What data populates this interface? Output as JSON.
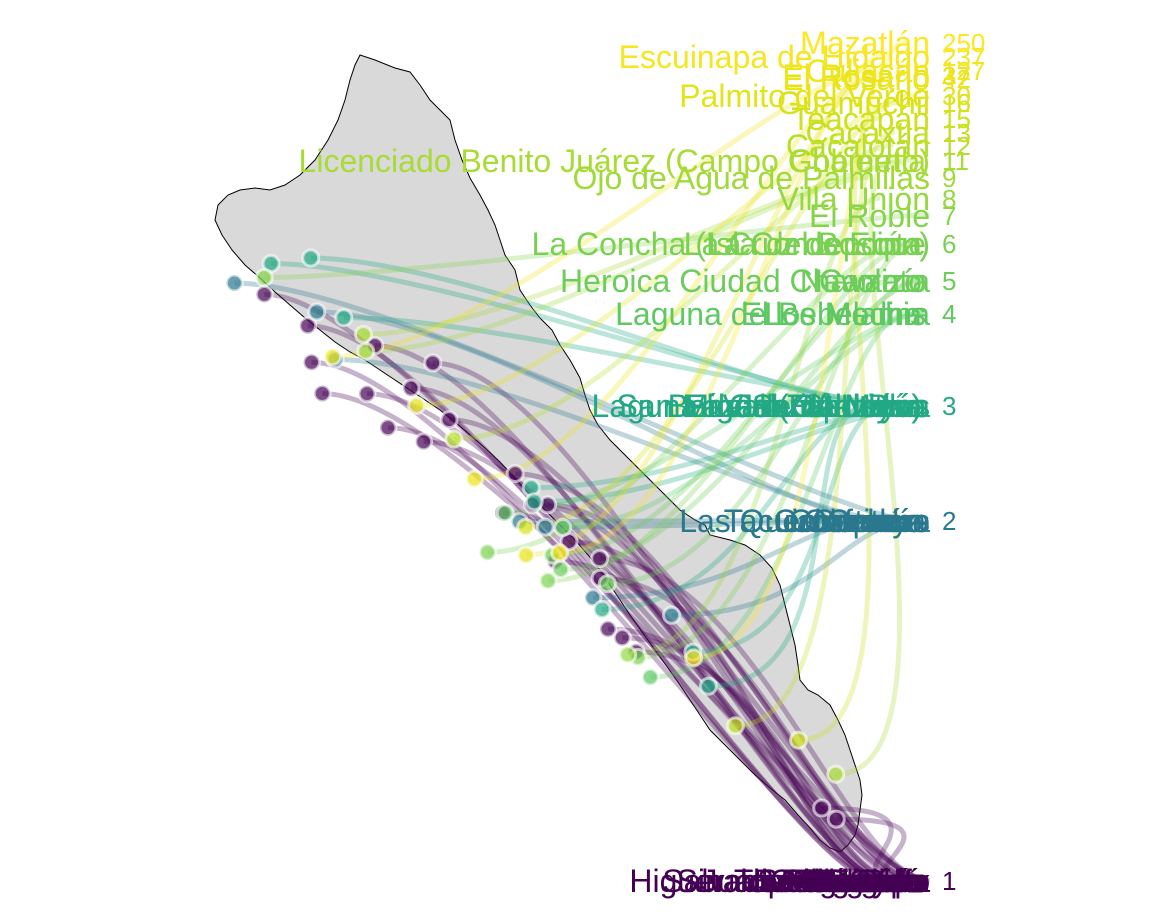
{
  "chart_data": {
    "type": "scatter",
    "title": "",
    "xlabel": "",
    "ylabel": "",
    "grid": false,
    "legend": "none",
    "description_layers": [
      "state map of Sinaloa",
      "localities as points",
      "curved flows to ranked bump-chart labels"
    ],
    "color_scale": [
      "#440154",
      "#3b528b",
      "#21918c",
      "#5ec962",
      "#fde725"
    ],
    "ranks": [
      {
        "rank": "1",
        "color": "#440154",
        "names": [
          "Escuinapa",
          "San Ignacio",
          "Cosalá",
          "Elota",
          "Concordia",
          "El Fuerte",
          "Choix",
          "Badiraguato",
          "Sinaloa de Leyva",
          "Mocorito",
          "Angostura",
          "Salvador Alvarado",
          "Navolato",
          "Guasave",
          "Ahome",
          "Culiacán",
          "Mazatlán",
          "Rosario",
          "Eldorado",
          "Costa Rica",
          "Juan José Ríos",
          "Higuera de Zaragoza",
          "Topolobampo",
          "La Cruz"
        ]
      },
      {
        "rank": "2",
        "color": "#2a788e",
        "names": [
          "Caimanero",
          "Cofradía",
          "Copaco",
          "Tacuichamona",
          "Celaya",
          "Colotitlán",
          "Las Quemazones"
        ]
      },
      {
        "rank": "3",
        "color": "#22a884",
        "names": [
          "El Valle de Leyva",
          "Laguna de Santa María",
          "Bamoa (Estación)",
          "San Blas",
          "Gabriel Leyva",
          "Juan Aldama",
          "Lázaro Cárdenas",
          "San Miguel Zapotitlán"
        ]
      },
      {
        "rank": "4",
        "color": "#5ec962",
        "names": [
          "Laguna de los Medina",
          "Los Mochis",
          "El Bebelama"
        ]
      },
      {
        "rank": "5",
        "color": "#6ccd5a",
        "names": [
          "Heroica Ciudad Chavarría",
          "Navolato",
          "Carrizo"
        ]
      },
      {
        "rank": "6",
        "color": "#7ad151",
        "names": [
          "La Concha (La Concepción)",
          "Isla del Bosque",
          "La Cruz de Elota"
        ]
      },
      {
        "rank": "7",
        "color": "#84d44b",
        "names": [
          "El Roble"
        ]
      },
      {
        "rank": "8",
        "color": "#95d840",
        "names": [
          "Villa Unión"
        ]
      },
      {
        "rank": "9",
        "color": "#9fda3a",
        "names": [
          "Ojo de Agua de Palmillas"
        ]
      },
      {
        "rank": "11",
        "color": "#a8db34",
        "names": [
          "Licenciado Benito Juárez (Campo Gobierno)",
          "Chametla"
        ]
      },
      {
        "rank": "12",
        "color": "#b5de2b",
        "names": [
          "Cacalotán"
        ]
      },
      {
        "rank": "13",
        "color": "#c2df23",
        "names": [
          "Cacaxtla"
        ]
      },
      {
        "rank": "15",
        "color": "#cde11d",
        "names": [
          "Teacapán"
        ]
      },
      {
        "rank": "16",
        "color": "#d8e219",
        "names": [
          "Guamúchil"
        ]
      },
      {
        "rank": "30",
        "color": "#e2e418",
        "names": [
          "Palmito del Verde"
        ]
      },
      {
        "rank": "37",
        "color": "#e5e419",
        "names": [
          "El Rosario"
        ]
      },
      {
        "rank": "42",
        "color": "#ece51b",
        "names": [
          "El Rosario"
        ]
      },
      {
        "rank": "127",
        "color": "#f1e51d",
        "names": [
          "Culiacán"
        ]
      },
      {
        "rank": "237",
        "color": "#f6e620",
        "names": [
          "Escuinapa de Hidalgo"
        ]
      },
      {
        "rank": "250",
        "color": "#fde725",
        "names": [
          "Mazatlán"
        ]
      }
    ]
  }
}
